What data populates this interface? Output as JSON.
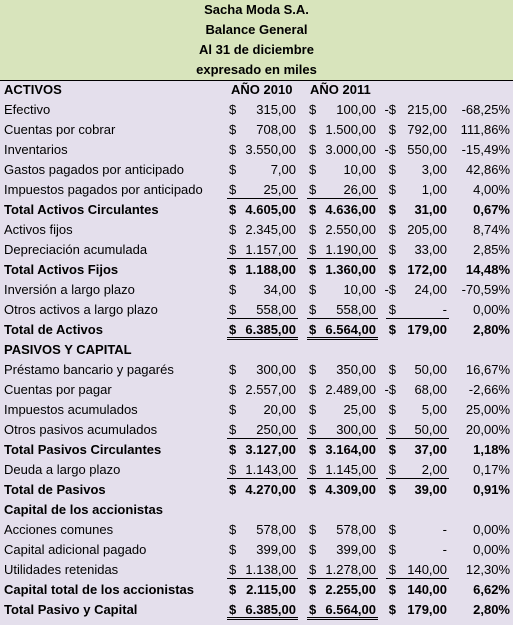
{
  "header": {
    "lines": [
      "Sacha Moda S.A.",
      "Balance General",
      "Al 31 de diciembre",
      "expresado en miles"
    ]
  },
  "table": {
    "header_row": {
      "label": "ACTIVOS",
      "year1": "AÑO 2010",
      "year2": "AÑO 2011"
    },
    "rows": [
      [
        "Efectivo",
        "$",
        "315,00",
        "$",
        "100,00",
        "-$",
        "215,00",
        "-68,25%"
      ],
      [
        "Cuentas por cobrar",
        "$",
        "708,00",
        "$",
        "1.500,00",
        "$",
        "792,00",
        "111,86%"
      ],
      [
        "Inventarios",
        "$",
        "3.550,00",
        "$",
        "3.000,00",
        "-$",
        "550,00",
        "-15,49%"
      ],
      [
        "Gastos pagados por anticipado",
        "$",
        "7,00",
        "$",
        "10,00",
        "$",
        "3,00",
        "42,86%"
      ],
      [
        "Impuestos pagados por anticipado",
        "$",
        "25,00",
        "$",
        "26,00",
        "$",
        "1,00",
        "4,00%"
      ],
      [
        "Total Activos Circulantes",
        "$",
        "4.605,00",
        "$",
        "4.636,00",
        "$",
        "31,00",
        "0,67%"
      ],
      [
        "Activos fijos",
        "$",
        "2.345,00",
        "$",
        "2.550,00",
        "$",
        "205,00",
        "8,74%"
      ],
      [
        "Depreciación acumulada",
        "$",
        "1.157,00",
        "$",
        "1.190,00",
        "$",
        "33,00",
        "2,85%"
      ],
      [
        "Total Activos Fijos",
        "$",
        "1.188,00",
        "$",
        "1.360,00",
        "$",
        "172,00",
        "14,48%"
      ],
      [
        "Inversión a largo plazo",
        "$",
        "34,00",
        "$",
        "10,00",
        "-$",
        "24,00",
        "-70,59%"
      ],
      [
        "Otros activos a largo plazo",
        "$",
        "558,00",
        "$",
        "558,00",
        "$",
        "-",
        "0,00%"
      ],
      [
        "Total de Activos",
        "$",
        "6.385,00",
        "$",
        "6.564,00",
        "$",
        "179,00",
        "2,80%"
      ],
      [
        "PASIVOS Y CAPITAL"
      ],
      [
        "Préstamo bancario y pagarés",
        "$",
        "300,00",
        "$",
        "350,00",
        "$",
        "50,00",
        "16,67%"
      ],
      [
        "Cuentas por pagar",
        "$",
        "2.557,00",
        "$",
        "2.489,00",
        "-$",
        "68,00",
        "-2,66%"
      ],
      [
        "Impuestos acumulados",
        "$",
        "20,00",
        "$",
        "25,00",
        "$",
        "5,00",
        "25,00%"
      ],
      [
        "Otros pasivos acumulados",
        "$",
        "250,00",
        "$",
        "300,00",
        "$",
        "50,00",
        "20,00%"
      ],
      [
        "Total Pasivos Circulantes",
        "$",
        "3.127,00",
        "$",
        "3.164,00",
        "$",
        "37,00",
        "1,18%"
      ],
      [
        "Deuda a largo plazo",
        "$",
        "1.143,00",
        "$",
        "1.145,00",
        "$",
        "2,00",
        "0,17%"
      ],
      [
        "Total de Pasivos",
        "$",
        "4.270,00",
        "$",
        "4.309,00",
        "$",
        "39,00",
        "0,91%"
      ],
      [
        "Capital de los accionistas"
      ],
      [
        "Acciones comunes",
        "$",
        "578,00",
        "$",
        "578,00",
        "$",
        "-",
        "0,00%"
      ],
      [
        "Capital adicional pagado",
        "$",
        "399,00",
        "$",
        "399,00",
        "$",
        "-",
        "0,00%"
      ],
      [
        "Utilidades retenidas",
        "$",
        "1.138,00",
        "$",
        "1.278,00",
        "$",
        "140,00",
        "12,30%"
      ],
      [
        "Capital total de los accionistas",
        "$",
        "2.115,00",
        "$",
        "2.255,00",
        "$",
        "140,00",
        "6,62%"
      ],
      [
        "Total Pasivo y Capital",
        "$",
        "6.385,00",
        "$",
        "6.564,00",
        "$",
        "179,00",
        "2,80%"
      ]
    ]
  }
}
